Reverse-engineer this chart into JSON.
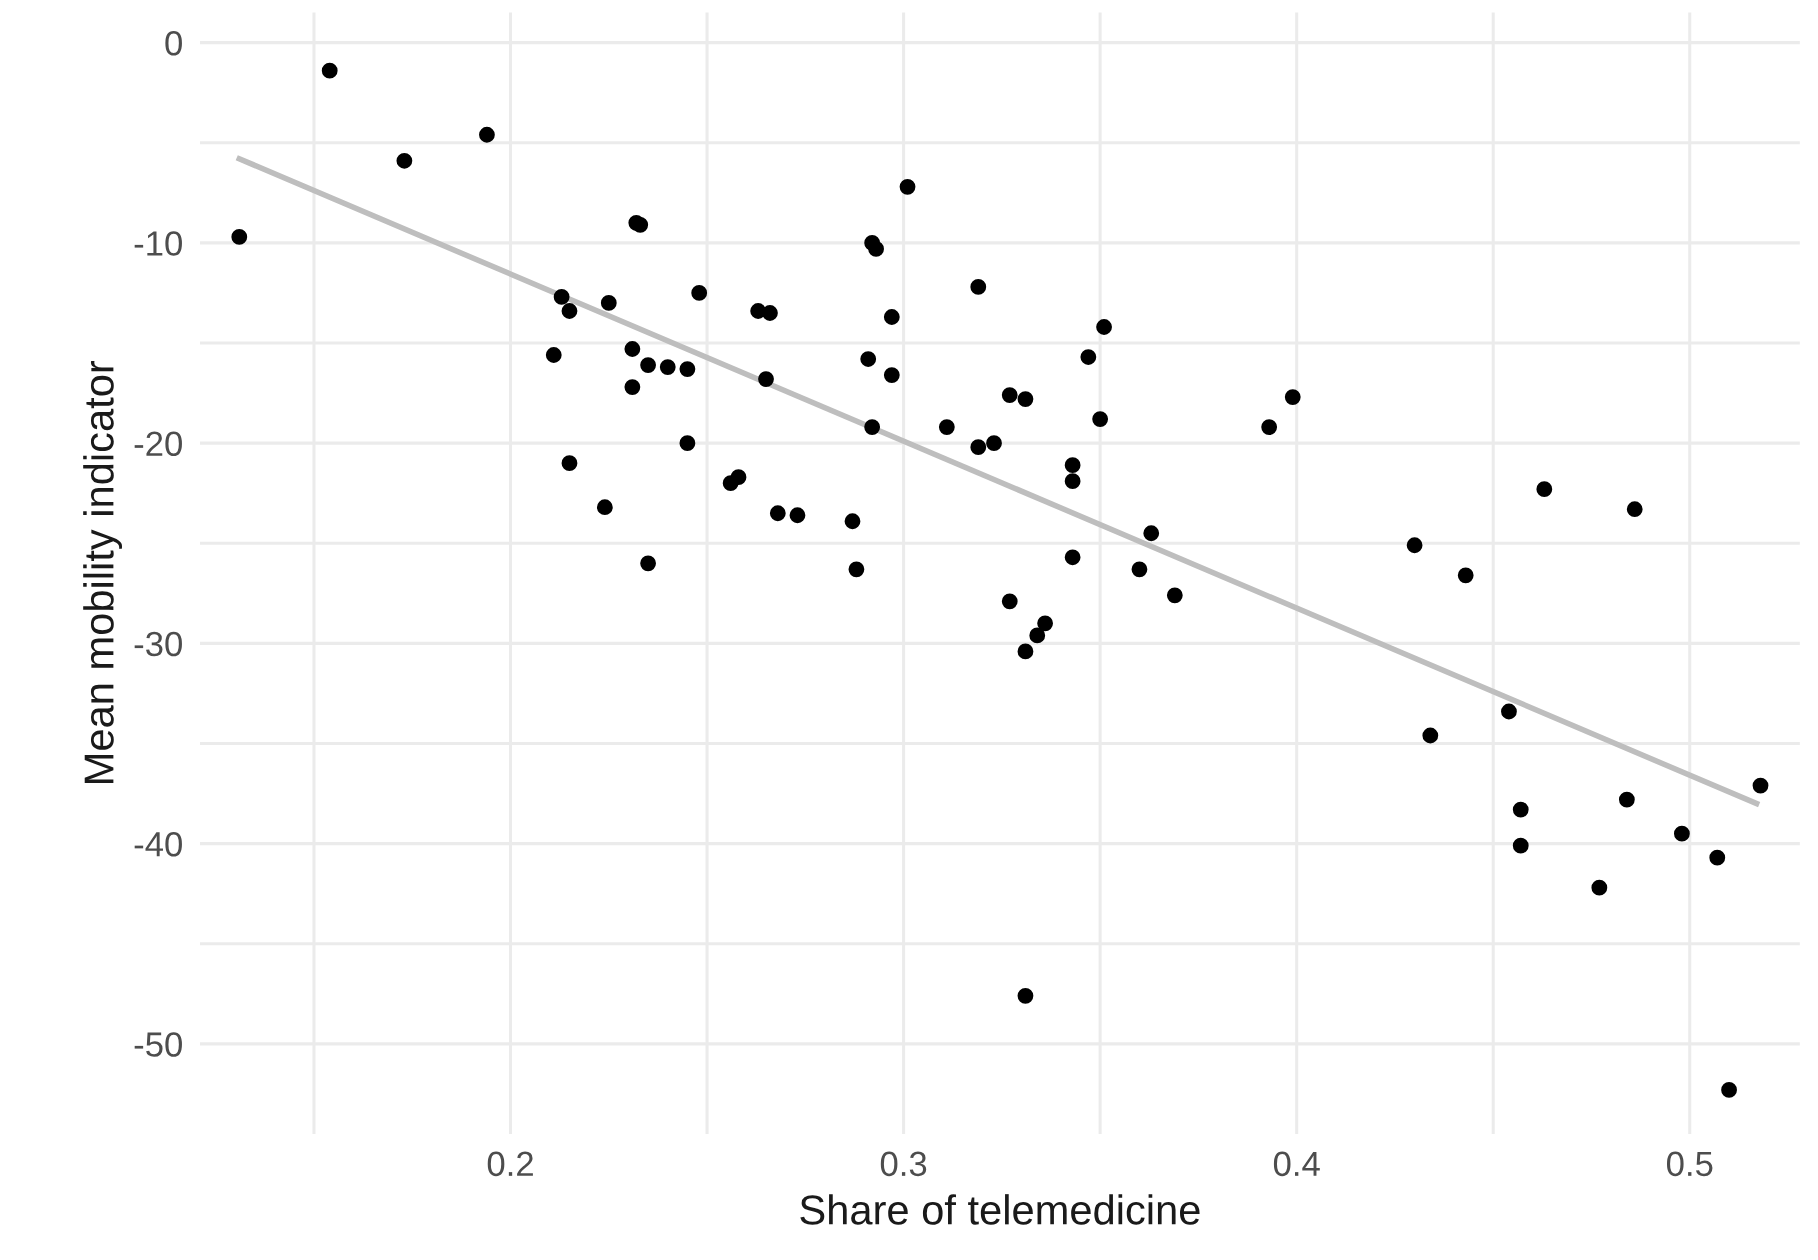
{
  "chart_data": {
    "type": "scatter",
    "xlabel": "Share of telemedicine",
    "ylabel": "Mean mobility indicator",
    "series": [
      {
        "color": "#000000",
        "marker": "circle",
        "x": [
          0.131,
          0.154,
          0.173,
          0.194,
          0.211,
          0.213,
          0.215,
          0.215,
          0.224,
          0.225,
          0.231,
          0.231,
          0.232,
          0.233,
          0.235,
          0.235,
          0.24,
          0.245,
          0.245,
          0.248,
          0.256,
          0.258,
          0.263,
          0.265,
          0.266,
          0.268,
          0.273,
          0.287,
          0.288,
          0.291,
          0.292,
          0.292,
          0.293,
          0.297,
          0.297,
          0.301,
          0.311,
          0.319,
          0.319,
          0.323,
          0.327,
          0.327,
          0.331,
          0.331,
          0.331,
          0.334,
          0.336,
          0.343,
          0.343,
          0.343,
          0.347,
          0.35,
          0.351,
          0.36,
          0.363,
          0.369,
          0.393,
          0.399,
          0.43,
          0.434,
          0.443,
          0.454,
          0.457,
          0.457,
          0.463,
          0.477,
          0.484,
          0.486,
          0.498,
          0.507,
          0.51,
          0.518
        ],
        "values": [
          -9.7,
          -1.4,
          -5.9,
          -4.6,
          -15.6,
          -12.7,
          -13.4,
          -21.0,
          -23.2,
          -13.0,
          -15.3,
          -17.2,
          -9.0,
          -9.1,
          -16.1,
          -26.0,
          -16.2,
          -20.0,
          -16.3,
          -12.5,
          -22.0,
          -21.7,
          -13.4,
          -16.8,
          -13.5,
          -23.5,
          -23.6,
          -23.9,
          -26.3,
          -15.8,
          -19.2,
          -10.0,
          -10.3,
          -16.6,
          -13.7,
          -7.2,
          -19.2,
          -12.2,
          -20.2,
          -20.0,
          -17.6,
          -27.9,
          -17.8,
          -30.4,
          -47.6,
          -29.6,
          -29.0,
          -21.1,
          -21.9,
          -25.7,
          -15.7,
          -18.8,
          -14.2,
          -26.3,
          -24.5,
          -27.6,
          -19.2,
          -17.7,
          -25.1,
          -34.6,
          -26.6,
          -33.4,
          -38.3,
          -40.1,
          -22.3,
          -42.2,
          -37.8,
          -23.3,
          -39.5,
          -40.7,
          -52.3,
          -37.1
        ]
      },
      {
        "type": "line",
        "color": "#bebebe",
        "x": [
          0.131,
          0.517
        ],
        "values": [
          -5.8,
          -38.0
        ]
      }
    ],
    "xlim": [
      0.121,
      0.528
    ],
    "ylim": [
      -54.5,
      1.5
    ],
    "xticks": [
      {
        "value": 0.15,
        "label": null
      },
      0.2,
      {
        "value": 0.25,
        "label": null
      },
      0.3,
      {
        "value": 0.35,
        "label": null
      },
      0.4,
      {
        "value": 0.45,
        "label": null
      },
      0.5
    ],
    "yticks": [
      -50,
      {
        "value": -45,
        "label": null
      },
      -40,
      {
        "value": -35,
        "label": null
      },
      -30,
      {
        "value": -25,
        "label": null
      },
      -20,
      {
        "value": -15,
        "label": null
      },
      -10,
      {
        "value": -5,
        "label": null
      },
      0
    ],
    "grid": true
  }
}
